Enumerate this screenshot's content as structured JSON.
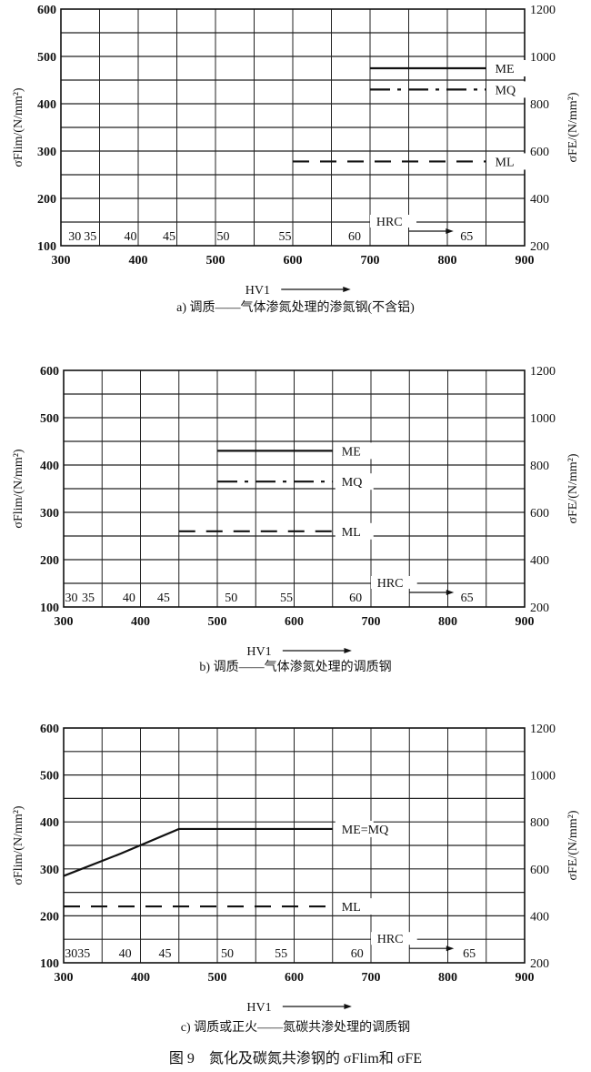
{
  "figure_title": "图 9　氮化及碳氮共渗钢的 σFlim和 σFE",
  "chart_data": [
    {
      "type": "line",
      "caption": "a) 调质——气体渗氮处理的渗氮钢(不含铝)",
      "xlabel": "HV1",
      "ylabel_left": "σFlim/(N/mm²)",
      "ylabel_right": "σFE/(N/mm²)",
      "xlim": [
        300,
        900
      ],
      "ylim_left": [
        100,
        600
      ],
      "ylim_right": [
        200,
        1200
      ],
      "x_ticks": [
        300,
        400,
        500,
        600,
        700,
        800,
        900
      ],
      "y_ticks_left": [
        100,
        200,
        300,
        400,
        500,
        600
      ],
      "y_ticks_right": [
        200,
        400,
        600,
        800,
        1000,
        1200
      ],
      "grid": true,
      "hrc_label": "HRC",
      "hrc_ticks": [
        {
          "label": "30",
          "hv": 318
        },
        {
          "label": "35",
          "hv": 338
        },
        {
          "label": "40",
          "hv": 390
        },
        {
          "label": "45",
          "hv": 440
        },
        {
          "label": "50",
          "hv": 510
        },
        {
          "label": "55",
          "hv": 590
        },
        {
          "label": "60",
          "hv": 680
        },
        {
          "label": "65",
          "hv": 825
        }
      ],
      "series": [
        {
          "name": "ME",
          "style": "solid",
          "points": [
            [
              700,
              475
            ],
            [
              850,
              475
            ]
          ]
        },
        {
          "name": "MQ",
          "style": "dashdot",
          "points": [
            [
              700,
              430
            ],
            [
              850,
              430
            ]
          ]
        },
        {
          "name": "ML",
          "style": "dashed",
          "points": [
            [
              600,
              278
            ],
            [
              850,
              278
            ]
          ]
        }
      ]
    },
    {
      "type": "line",
      "caption": "b) 调质——气体渗氮处理的调质钢",
      "xlabel": "HV1",
      "ylabel_left": "σFlim/(N/mm²)",
      "ylabel_right": "σFE/(N/mm²)",
      "xlim": [
        300,
        900
      ],
      "ylim_left": [
        100,
        600
      ],
      "ylim_right": [
        200,
        1200
      ],
      "x_ticks": [
        300,
        400,
        500,
        600,
        700,
        800,
        900
      ],
      "y_ticks_left": [
        100,
        200,
        300,
        400,
        500,
        600
      ],
      "y_ticks_right": [
        200,
        400,
        600,
        800,
        1000,
        1200
      ],
      "grid": true,
      "hrc_label": "HRC",
      "hrc_ticks": [
        {
          "label": "30",
          "hv": 310
        },
        {
          "label": "35",
          "hv": 332
        },
        {
          "label": "40",
          "hv": 385
        },
        {
          "label": "45",
          "hv": 430
        },
        {
          "label": "50",
          "hv": 518
        },
        {
          "label": "55",
          "hv": 590
        },
        {
          "label": "60",
          "hv": 680
        },
        {
          "label": "65",
          "hv": 825
        }
      ],
      "series": [
        {
          "name": "ME",
          "style": "solid",
          "points": [
            [
              500,
              430
            ],
            [
              650,
              430
            ]
          ]
        },
        {
          "name": "MQ",
          "style": "dashdot",
          "points": [
            [
              500,
              365
            ],
            [
              650,
              365
            ]
          ]
        },
        {
          "name": "ML",
          "style": "dashed",
          "points": [
            [
              450,
              260
            ],
            [
              650,
              260
            ]
          ]
        }
      ]
    },
    {
      "type": "line",
      "caption": "c) 调质或正火——氮碳共渗处理的调质钢",
      "xlabel": "HV1",
      "ylabel_left": "σFlim/(N/mm²)",
      "ylabel_right": "σFE/(N/mm²)",
      "xlim": [
        300,
        900
      ],
      "ylim_left": [
        100,
        600
      ],
      "ylim_right": [
        200,
        1200
      ],
      "x_ticks": [
        300,
        400,
        500,
        600,
        700,
        800,
        900
      ],
      "y_ticks_left": [
        100,
        200,
        300,
        400,
        500,
        600
      ],
      "y_ticks_right": [
        200,
        400,
        600,
        800,
        1000,
        1200
      ],
      "grid": true,
      "hrc_label": "HRC",
      "hrc_ticks": [
        {
          "label": "3035",
          "hv": 318
        },
        {
          "label": "40",
          "hv": 380
        },
        {
          "label": "45",
          "hv": 432
        },
        {
          "label": "50",
          "hv": 513
        },
        {
          "label": "55",
          "hv": 583
        },
        {
          "label": "60",
          "hv": 682
        },
        {
          "label": "65",
          "hv": 828
        }
      ],
      "series": [
        {
          "name": "ME=MQ",
          "style": "solid",
          "points": [
            [
              300,
              285
            ],
            [
              375,
              333
            ],
            [
              450,
              385
            ],
            [
              650,
              385
            ]
          ]
        },
        {
          "name": "ML",
          "style": "dashed",
          "points": [
            [
              300,
              220
            ],
            [
              650,
              220
            ]
          ]
        }
      ]
    }
  ]
}
